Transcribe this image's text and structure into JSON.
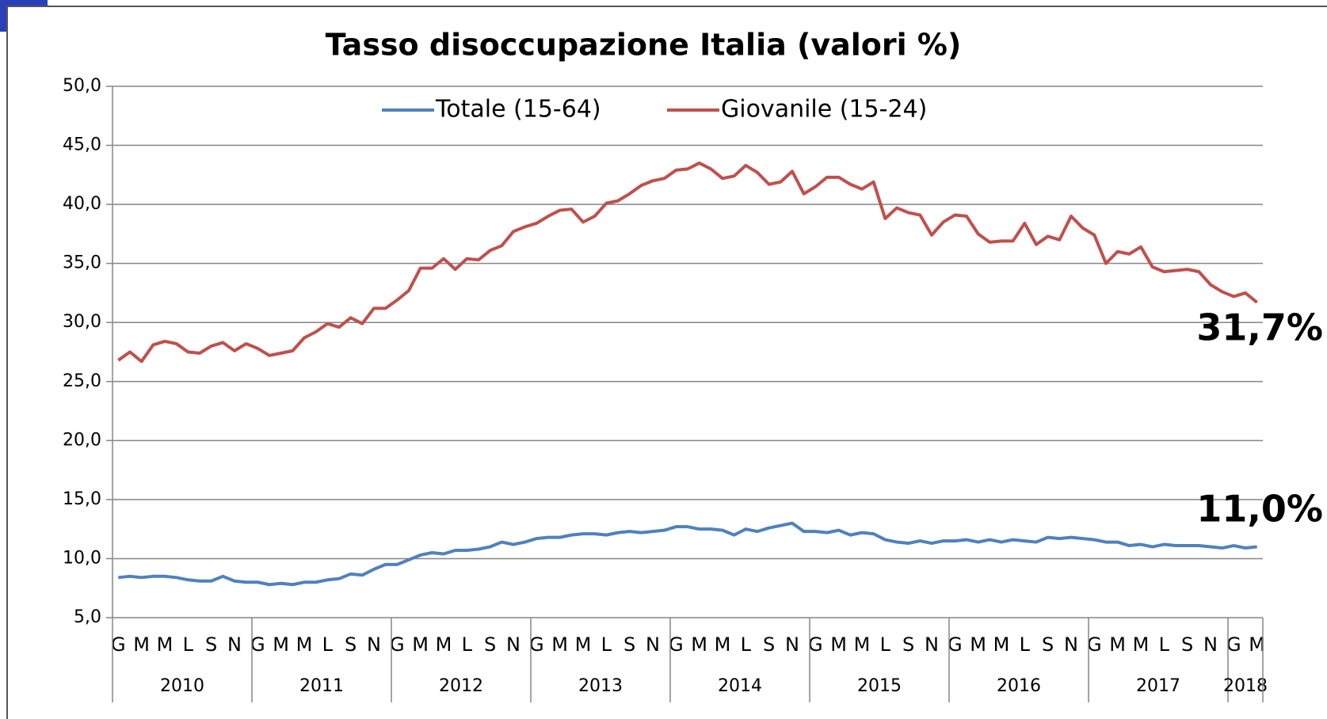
{
  "chart_data": {
    "type": "line",
    "title": "Tasso disoccupazione Italia (valori %)",
    "groups": [
      {
        "label": "2010",
        "categories": [
          "G",
          null,
          "M",
          null,
          "M",
          null,
          "L",
          null,
          "S",
          null,
          "N",
          null
        ]
      },
      {
        "label": "2011",
        "categories": [
          "G",
          null,
          "M",
          null,
          "M",
          null,
          "L",
          null,
          "S",
          null,
          "N",
          null
        ]
      },
      {
        "label": "2012",
        "categories": [
          "G",
          null,
          "M",
          null,
          "M",
          null,
          "L",
          null,
          "S",
          null,
          "N",
          null
        ]
      },
      {
        "label": "2013",
        "categories": [
          "G",
          null,
          "M",
          null,
          "M",
          null,
          "L",
          null,
          "S",
          null,
          "N",
          null
        ]
      },
      {
        "label": "2014",
        "categories": [
          "G",
          null,
          "M",
          null,
          "M",
          null,
          "L",
          null,
          "S",
          null,
          "N",
          null
        ]
      },
      {
        "label": "2015",
        "categories": [
          "G",
          null,
          "M",
          null,
          "M",
          null,
          "L",
          null,
          "S",
          null,
          "N",
          null
        ]
      },
      {
        "label": "2016",
        "categories": [
          "G",
          null,
          "M",
          null,
          "M",
          null,
          "L",
          null,
          "S",
          null,
          "N",
          null
        ]
      },
      {
        "label": "2017",
        "categories": [
          "G",
          null,
          "M",
          null,
          "M",
          null,
          "L",
          null,
          "S",
          null,
          "N",
          null
        ]
      },
      {
        "label": "2018",
        "categories": [
          "G",
          null,
          "M"
        ]
      }
    ],
    "series": [
      {
        "name": "Totale (15-64)",
        "color": "#4f81bd",
        "values": [
          8.4,
          8.5,
          8.4,
          8.5,
          8.5,
          8.4,
          8.2,
          8.1,
          8.1,
          8.5,
          8.1,
          8.0,
          8.0,
          7.8,
          7.9,
          7.8,
          8.0,
          8.0,
          8.2,
          8.3,
          8.7,
          8.6,
          9.1,
          9.5,
          9.5,
          9.9,
          10.3,
          10.5,
          10.4,
          10.7,
          10.7,
          10.8,
          11.0,
          11.4,
          11.2,
          11.4,
          11.7,
          11.8,
          11.8,
          12.0,
          12.1,
          12.1,
          12.0,
          12.2,
          12.3,
          12.2,
          12.3,
          12.4,
          12.7,
          12.7,
          12.5,
          12.5,
          12.4,
          12.0,
          12.5,
          12.3,
          12.6,
          12.8,
          13.0,
          12.3,
          12.3,
          12.2,
          12.4,
          12.0,
          12.2,
          12.1,
          11.6,
          11.4,
          11.3,
          11.5,
          11.3,
          11.5,
          11.5,
          11.6,
          11.4,
          11.6,
          11.4,
          11.6,
          11.5,
          11.4,
          11.8,
          11.7,
          11.8,
          11.7,
          11.6,
          11.4,
          11.4,
          11.1,
          11.2,
          11.0,
          11.2,
          11.1,
          11.1,
          11.1,
          11.0,
          10.9,
          11.1,
          10.9,
          11.0
        ]
      },
      {
        "name": "Giovanile (15-24)",
        "color": "#c0504d",
        "values": [
          26.8,
          27.5,
          26.7,
          28.1,
          28.4,
          28.2,
          27.5,
          27.4,
          28.0,
          28.3,
          27.6,
          28.2,
          27.8,
          27.2,
          27.4,
          27.6,
          28.7,
          29.2,
          29.9,
          29.6,
          30.4,
          29.9,
          31.2,
          31.2,
          31.9,
          32.7,
          34.6,
          34.6,
          35.4,
          34.5,
          35.4,
          35.3,
          36.1,
          36.5,
          37.7,
          38.1,
          38.4,
          39.0,
          39.5,
          39.6,
          38.5,
          39.0,
          40.1,
          40.3,
          40.9,
          41.6,
          42.0,
          42.2,
          42.9,
          43.0,
          43.5,
          43.0,
          42.2,
          42.4,
          43.3,
          42.7,
          41.7,
          41.9,
          42.8,
          40.9,
          41.5,
          42.3,
          42.3,
          41.7,
          41.3,
          41.9,
          38.8,
          39.7,
          39.3,
          39.1,
          37.4,
          38.5,
          39.1,
          39.0,
          37.5,
          36.8,
          36.9,
          36.9,
          38.4,
          36.6,
          37.3,
          37.0,
          39.0,
          38.0,
          37.4,
          35.0,
          36.0,
          35.8,
          36.4,
          34.7,
          34.3,
          34.4,
          34.5,
          34.3,
          33.2,
          32.6,
          32.2,
          32.5,
          31.7
        ]
      }
    ],
    "ylim": [
      5,
      50
    ],
    "yticks": [
      {
        "value": 5,
        "label": "5,0"
      },
      {
        "value": 10,
        "label": "10,0"
      },
      {
        "value": 15,
        "label": "15,0"
      },
      {
        "value": 20,
        "label": "20,0"
      },
      {
        "value": 25,
        "label": "25,0"
      },
      {
        "value": 30,
        "label": "30,0"
      },
      {
        "value": 35,
        "label": "35,0"
      },
      {
        "value": 40,
        "label": "40,0"
      },
      {
        "value": 45,
        "label": "45,0"
      },
      {
        "value": 50,
        "label": "50,0"
      }
    ],
    "grid": true,
    "legend": "top",
    "annotations": [
      "31,7%",
      "11,0%"
    ]
  }
}
